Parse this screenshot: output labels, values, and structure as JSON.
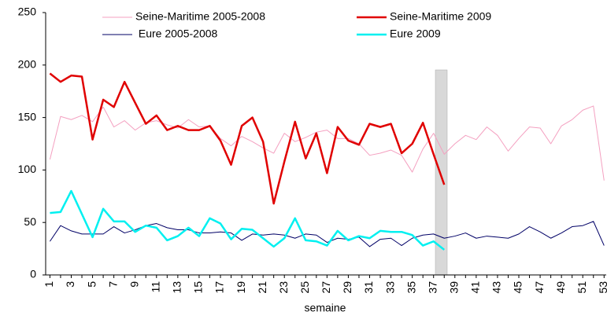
{
  "chart_data": {
    "type": "line",
    "x_label": "semaine",
    "x": [
      1,
      2,
      3,
      4,
      5,
      6,
      7,
      8,
      9,
      10,
      11,
      12,
      13,
      14,
      15,
      16,
      17,
      18,
      19,
      20,
      21,
      22,
      23,
      24,
      25,
      26,
      27,
      28,
      29,
      30,
      31,
      32,
      33,
      34,
      35,
      36,
      37,
      38,
      39,
      40,
      41,
      42,
      43,
      44,
      45,
      46,
      47,
      48,
      49,
      50,
      51,
      52,
      53
    ],
    "xlim": [
      0.6,
      53.2
    ],
    "xticks": [
      1,
      3,
      5,
      7,
      9,
      11,
      13,
      15,
      17,
      19,
      21,
      23,
      25,
      27,
      29,
      31,
      33,
      35,
      37,
      39,
      41,
      43,
      45,
      47,
      49,
      51,
      53
    ],
    "ylim": [
      0,
      250
    ],
    "yticks": [
      0,
      50,
      100,
      150,
      200,
      250
    ],
    "legend": "top",
    "series": [
      {
        "name": "Seine-Maritime 2005-2008",
        "color": "#f4a0c0",
        "width": 1,
        "values": [
          110,
          151,
          148,
          152,
          146,
          160,
          141,
          147,
          138,
          145,
          147,
          143,
          140,
          148,
          141,
          142,
          130,
          123,
          132,
          127,
          121,
          116,
          135,
          127,
          131,
          136,
          138,
          130,
          130,
          125,
          114,
          116,
          119,
          114,
          98,
          120,
          135,
          115,
          125,
          133,
          129,
          141,
          133,
          118,
          130,
          141,
          140,
          125,
          142,
          148,
          157,
          161,
          90
        ]
      },
      {
        "name": "Seine-Maritime 2009",
        "color": "#e00000",
        "width": 2.5,
        "values": [
          192,
          184,
          190,
          189,
          129,
          167,
          160,
          184,
          164,
          144,
          152,
          138,
          142,
          138,
          138,
          142,
          128,
          105,
          142,
          150,
          127,
          68,
          108,
          146,
          111,
          135,
          97,
          141,
          128,
          124,
          144,
          141,
          144,
          116,
          125,
          145,
          115,
          86,
          null,
          null,
          null,
          null,
          null,
          null,
          null,
          null,
          null,
          null,
          null,
          null,
          null,
          null,
          null
        ]
      },
      {
        "name": " Eure 2005-2008",
        "color": "#000066",
        "width": 1,
        "values": [
          32,
          47,
          42,
          39,
          39,
          39,
          46,
          40,
          43,
          47,
          49,
          45,
          43,
          43,
          40,
          40,
          41,
          40,
          33,
          39,
          38,
          39,
          38,
          35,
          39,
          38,
          31,
          35,
          34,
          36,
          27,
          34,
          35,
          28,
          35,
          38,
          39,
          35,
          37,
          40,
          35,
          37,
          36,
          35,
          39,
          46,
          41,
          35,
          40,
          46,
          47,
          51,
          28
        ]
      },
      {
        "name": "Eure 2009",
        "color": "#00f0f0",
        "width": 2.5,
        "values": [
          59,
          60,
          80,
          58,
          36,
          63,
          51,
          51,
          41,
          47,
          45,
          33,
          37,
          45,
          37,
          54,
          49,
          34,
          44,
          43,
          35,
          27,
          35,
          54,
          33,
          32,
          28,
          42,
          33,
          37,
          35,
          42,
          41,
          41,
          38,
          28,
          32,
          24,
          null,
          null,
          null,
          null,
          null,
          null,
          null,
          null,
          null,
          null,
          null,
          null,
          null,
          null,
          null
        ]
      }
    ]
  }
}
